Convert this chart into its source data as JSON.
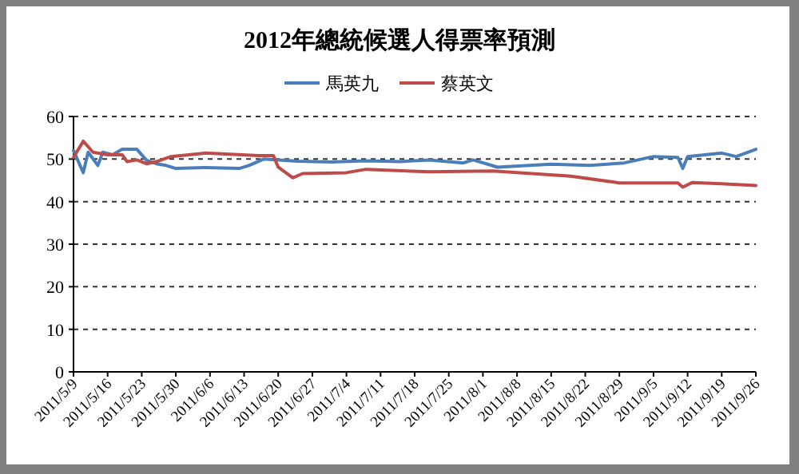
{
  "chart_data": {
    "type": "line",
    "title": "2012年總統候選人得票率預測",
    "legend": "top",
    "grid": "y",
    "marker": "none",
    "line_style": "solid",
    "xlim": [
      "2011-05-09",
      "2011-09-26"
    ],
    "xticks": [
      {
        "value": "2011-05-09",
        "label": "2011/5/9"
      },
      {
        "value": "2011-05-16",
        "label": "2011/5/16"
      },
      {
        "value": "2011-05-23",
        "label": "2011/5/23"
      },
      {
        "value": "2011-05-30",
        "label": "2011/5/30"
      },
      {
        "value": "2011-06-06",
        "label": "2011/6/6"
      },
      {
        "value": "2011-06-13",
        "label": "2011/6/13"
      },
      {
        "value": "2011-06-20",
        "label": "2011/6/20"
      },
      {
        "value": "2011-06-27",
        "label": "2011/6/27"
      },
      {
        "value": "2011-07-04",
        "label": "2011/7/4"
      },
      {
        "value": "2011-07-11",
        "label": "2011/7/11"
      },
      {
        "value": "2011-07-18",
        "label": "2011/7/18"
      },
      {
        "value": "2011-07-25",
        "label": "2011/7/25"
      },
      {
        "value": "2011-08-01",
        "label": "2011/8/1"
      },
      {
        "value": "2011-08-08",
        "label": "2011/8/8"
      },
      {
        "value": "2011-08-15",
        "label": "2011/8/15"
      },
      {
        "value": "2011-08-22",
        "label": "2011/8/22"
      },
      {
        "value": "2011-08-29",
        "label": "2011/8/29"
      },
      {
        "value": "2011-09-05",
        "label": "2011/9/5"
      },
      {
        "value": "2011-09-12",
        "label": "2011/9/12"
      },
      {
        "value": "2011-09-19",
        "label": "2011/9/19"
      },
      {
        "value": "2011-09-26",
        "label": "2011/9/26"
      }
    ],
    "ylim": [
      0,
      60
    ],
    "yticks": [
      0,
      10,
      20,
      30,
      40,
      50,
      60
    ],
    "series": [
      {
        "name": "馬英九",
        "color": "#4a7ebb",
        "x": [
          "2011-05-09",
          "2011-05-11",
          "2011-05-12",
          "2011-05-14",
          "2011-05-15",
          "2011-05-17",
          "2011-05-19",
          "2011-05-22",
          "2011-05-24",
          "2011-05-26",
          "2011-05-28",
          "2011-05-30",
          "2011-06-05",
          "2011-06-12",
          "2011-06-14",
          "2011-06-17",
          "2011-06-24",
          "2011-07-01",
          "2011-07-08",
          "2011-07-15",
          "2011-07-21",
          "2011-07-28",
          "2011-07-30",
          "2011-08-04",
          "2011-08-15",
          "2011-08-23",
          "2011-08-30",
          "2011-09-05",
          "2011-09-10",
          "2011-09-11",
          "2011-09-12",
          "2011-09-19",
          "2011-09-22",
          "2011-09-26"
        ],
        "values": [
          52,
          46.8,
          51.6,
          48.5,
          51.6,
          51,
          52.3,
          52.3,
          49.7,
          48.9,
          48.5,
          47.8,
          48,
          47.8,
          48.5,
          50,
          49.5,
          49.3,
          49.6,
          49.4,
          49.8,
          49.1,
          49.8,
          48.1,
          48.8,
          48.5,
          49.1,
          50.6,
          50.4,
          47.8,
          50.6,
          51.4,
          50.6,
          52.3
        ]
      },
      {
        "name": "蔡英文",
        "color": "#be4b48",
        "x": [
          "2011-05-09",
          "2011-05-11",
          "2011-05-13",
          "2011-05-16",
          "2011-05-19",
          "2011-05-20",
          "2011-05-22",
          "2011-05-24",
          "2011-05-26",
          "2011-05-29",
          "2011-06-05",
          "2011-06-16",
          "2011-06-19",
          "2011-06-20",
          "2011-06-23",
          "2011-06-25",
          "2011-07-04",
          "2011-07-08",
          "2011-07-21",
          "2011-08-03",
          "2011-08-19",
          "2011-08-29",
          "2011-09-10",
          "2011-09-11",
          "2011-09-13",
          "2011-09-19",
          "2011-09-26"
        ],
        "values": [
          50.4,
          54.2,
          51.6,
          51,
          51,
          49.4,
          49.8,
          48.9,
          49.4,
          50.6,
          51.4,
          50.8,
          50.8,
          48.1,
          45.6,
          46.6,
          46.8,
          47.6,
          47,
          47.2,
          46,
          44.4,
          44.4,
          43.4,
          44.5,
          44.2,
          43.8
        ]
      }
    ]
  }
}
